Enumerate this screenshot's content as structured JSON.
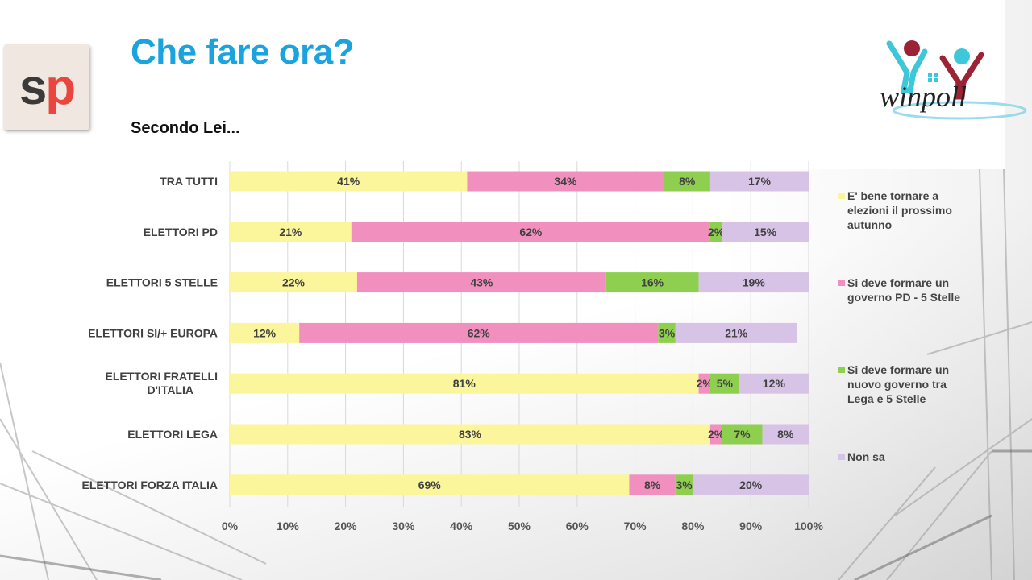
{
  "header": {
    "title": "Che fare ora?",
    "subtitle": "Secondo Lei...",
    "left_logo": {
      "s": "s",
      "p": "p"
    },
    "right_logo_text": "winpoll"
  },
  "colors": {
    "title": "#1aa3dd",
    "series": [
      "#fbf59b",
      "#f190bf",
      "#8fcf4f",
      "#d7c3e6"
    ]
  },
  "chart_data": {
    "type": "bar",
    "orientation": "horizontal",
    "stacked": true,
    "categories": [
      "TRA TUTTI",
      "ELETTORI PD",
      "ELETTORI 5 STELLE",
      "ELETTORI SI/+ EUROPA",
      "ELETTORI FRATELLI D'ITALIA",
      "ELETTORI LEGA",
      "ELETTORI FORZA ITALIA"
    ],
    "series": [
      {
        "name": "E' bene tornare a elezioni il prossimo autunno",
        "values": [
          41,
          21,
          22,
          12,
          81,
          83,
          69
        ]
      },
      {
        "name": "Si deve formare un governo PD - 5 Stelle",
        "values": [
          34,
          62,
          43,
          62,
          2,
          2,
          8
        ]
      },
      {
        "name": "Si deve formare un nuovo governo tra Lega e 5 Stelle",
        "values": [
          8,
          2,
          16,
          3,
          5,
          7,
          3
        ]
      },
      {
        "name": "Non sa",
        "values": [
          17,
          15,
          19,
          21,
          12,
          8,
          20
        ]
      }
    ],
    "xlim": [
      0,
      100
    ],
    "xticks": [
      "0%",
      "10%",
      "20%",
      "30%",
      "40%",
      "50%",
      "60%",
      "70%",
      "80%",
      "90%",
      "100%"
    ],
    "value_suffix": "%",
    "grid": true,
    "legend_position": "right"
  }
}
